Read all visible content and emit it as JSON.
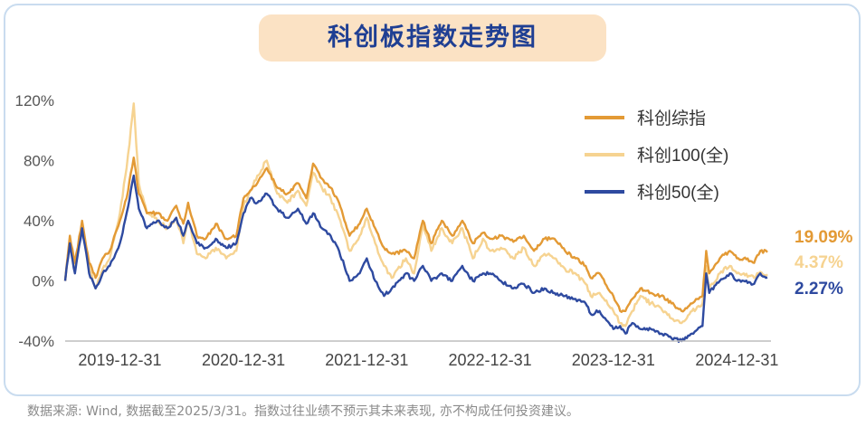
{
  "header": {
    "title": "科创板指数走势图"
  },
  "footnote": "数据来源: Wind, 数据截至2025/3/31。指数过往业绩不预示其未来表现, 亦不构成任何投资建议。",
  "colors": {
    "composite": "#e39a35",
    "kc100": "#f6d391",
    "kc50": "#2e4aa0",
    "axis": "#bdbdbd"
  },
  "chart_data": {
    "type": "line",
    "title": "科创板指数走势图",
    "xlabel": "",
    "ylabel": "",
    "ylim": [
      -40,
      120
    ],
    "yticks": [
      120,
      80,
      40,
      0,
      -40
    ],
    "ytick_labels": [
      "120%",
      "80%",
      "40%",
      "0%",
      "-40%"
    ],
    "xticks": [
      "2019-12-31",
      "2020-12-31",
      "2021-12-31",
      "2022-12-31",
      "2023-12-31",
      "2024-12-31"
    ],
    "xlim": [
      "2019-07-22",
      "2025-03-31"
    ],
    "grid": false,
    "legend_position": "top-right",
    "series": [
      {
        "name": "科创综指",
        "color": "#e39a35",
        "end_label": "19.09%",
        "x": [
          "2019-07-22",
          "2019-08-05",
          "2019-08-20",
          "2019-09-10",
          "2019-10-01",
          "2019-10-20",
          "2019-11-10",
          "2019-12-01",
          "2019-12-31",
          "2020-01-20",
          "2020-02-10",
          "2020-02-25",
          "2020-03-20",
          "2020-04-20",
          "2020-05-20",
          "2020-06-15",
          "2020-07-06",
          "2020-07-20",
          "2020-08-15",
          "2020-09-10",
          "2020-10-10",
          "2020-11-10",
          "2020-12-10",
          "2020-12-31",
          "2021-01-20",
          "2021-02-10",
          "2021-03-10",
          "2021-04-10",
          "2021-05-10",
          "2021-06-10",
          "2021-07-05",
          "2021-07-25",
          "2021-08-20",
          "2021-09-15",
          "2021-10-10",
          "2021-11-10",
          "2021-12-10",
          "2021-12-31",
          "2022-01-25",
          "2022-02-20",
          "2022-03-15",
          "2022-04-26",
          "2022-05-20",
          "2022-06-15",
          "2022-07-10",
          "2022-08-10",
          "2022-09-10",
          "2022-10-10",
          "2022-11-10",
          "2022-12-10",
          "2022-12-31",
          "2023-02-01",
          "2023-03-10",
          "2023-04-10",
          "2023-05-10",
          "2023-06-10",
          "2023-07-10",
          "2023-08-10",
          "2023-09-10",
          "2023-10-10",
          "2023-10-25",
          "2023-11-20",
          "2023-12-31",
          "2024-01-20",
          "2024-02-05",
          "2024-02-25",
          "2024-03-20",
          "2024-04-20",
          "2024-05-20",
          "2024-06-20",
          "2024-07-20",
          "2024-08-20",
          "2024-09-20",
          "2024-10-01",
          "2024-10-10",
          "2024-11-10",
          "2024-12-10",
          "2024-12-31",
          "2025-01-20",
          "2025-02-20",
          "2025-03-10",
          "2025-03-31"
        ],
        "values": [
          0,
          30,
          12,
          40,
          12,
          2,
          15,
          20,
          40,
          55,
          82,
          58,
          45,
          45,
          40,
          50,
          38,
          52,
          30,
          28,
          38,
          28,
          30,
          55,
          60,
          65,
          75,
          62,
          58,
          65,
          55,
          78,
          68,
          62,
          52,
          30,
          38,
          48,
          35,
          22,
          18,
          20,
          15,
          40,
          25,
          40,
          30,
          40,
          25,
          32,
          28,
          30,
          26,
          30,
          20,
          28,
          28,
          20,
          15,
          10,
          2,
          5,
          -10,
          -20,
          -20,
          -12,
          -5,
          -8,
          -10,
          -15,
          -20,
          -15,
          -10,
          20,
          5,
          15,
          20,
          15,
          15,
          12,
          20,
          19.09
        ]
      },
      {
        "name": "科创100(全)",
        "color": "#f6d391",
        "end_label": "4.37%",
        "x": [
          "2019-07-22",
          "2019-08-05",
          "2019-08-20",
          "2019-09-10",
          "2019-10-01",
          "2019-10-20",
          "2019-11-10",
          "2019-12-01",
          "2019-12-31",
          "2020-01-20",
          "2020-02-10",
          "2020-02-25",
          "2020-03-20",
          "2020-04-20",
          "2020-05-20",
          "2020-06-15",
          "2020-07-06",
          "2020-07-20",
          "2020-08-15",
          "2020-09-10",
          "2020-10-10",
          "2020-11-10",
          "2020-12-10",
          "2020-12-31",
          "2021-01-20",
          "2021-02-10",
          "2021-03-10",
          "2021-04-10",
          "2021-05-10",
          "2021-06-10",
          "2021-07-05",
          "2021-07-25",
          "2021-08-20",
          "2021-09-15",
          "2021-10-10",
          "2021-11-10",
          "2021-12-10",
          "2021-12-31",
          "2022-01-25",
          "2022-02-20",
          "2022-03-15",
          "2022-04-26",
          "2022-05-20",
          "2022-06-15",
          "2022-07-10",
          "2022-08-10",
          "2022-09-10",
          "2022-10-10",
          "2022-11-10",
          "2022-12-10",
          "2022-12-31",
          "2023-02-01",
          "2023-03-10",
          "2023-04-10",
          "2023-05-10",
          "2023-06-10",
          "2023-07-10",
          "2023-08-10",
          "2023-09-10",
          "2023-10-10",
          "2023-10-25",
          "2023-11-20",
          "2023-12-31",
          "2024-01-20",
          "2024-02-05",
          "2024-02-25",
          "2024-03-20",
          "2024-04-20",
          "2024-05-20",
          "2024-06-20",
          "2024-07-20",
          "2024-08-20",
          "2024-09-20",
          "2024-10-01",
          "2024-10-10",
          "2024-11-10",
          "2024-12-10",
          "2024-12-31",
          "2025-01-20",
          "2025-02-20",
          "2025-03-10",
          "2025-03-31"
        ],
        "values": [
          0,
          28,
          8,
          38,
          10,
          -5,
          8,
          15,
          45,
          75,
          118,
          65,
          45,
          40,
          35,
          42,
          25,
          40,
          18,
          15,
          22,
          15,
          20,
          50,
          60,
          70,
          80,
          58,
          52,
          60,
          50,
          72,
          62,
          55,
          42,
          20,
          30,
          42,
          25,
          10,
          2,
          15,
          5,
          38,
          20,
          35,
          25,
          35,
          15,
          28,
          20,
          22,
          15,
          22,
          10,
          18,
          15,
          8,
          5,
          -2,
          -10,
          -8,
          -20,
          -28,
          -30,
          -20,
          -10,
          -15,
          -18,
          -25,
          -28,
          -20,
          -15,
          10,
          -5,
          5,
          10,
          5,
          5,
          2,
          6,
          4.37
        ]
      },
      {
        "name": "科创50(全)",
        "color": "#2e4aa0",
        "end_label": "2.27%",
        "x": [
          "2019-07-22",
          "2019-08-05",
          "2019-08-20",
          "2019-09-10",
          "2019-10-01",
          "2019-10-20",
          "2019-11-10",
          "2019-12-01",
          "2019-12-31",
          "2020-01-20",
          "2020-02-10",
          "2020-02-25",
          "2020-03-20",
          "2020-04-20",
          "2020-05-20",
          "2020-06-15",
          "2020-07-06",
          "2020-07-20",
          "2020-08-15",
          "2020-09-10",
          "2020-10-10",
          "2020-11-10",
          "2020-12-10",
          "2020-12-31",
          "2021-01-20",
          "2021-02-10",
          "2021-03-10",
          "2021-04-10",
          "2021-05-10",
          "2021-06-10",
          "2021-07-05",
          "2021-07-25",
          "2021-08-20",
          "2021-09-15",
          "2021-10-10",
          "2021-11-10",
          "2021-12-10",
          "2021-12-31",
          "2022-01-25",
          "2022-02-20",
          "2022-03-15",
          "2022-04-26",
          "2022-05-20",
          "2022-06-15",
          "2022-07-10",
          "2022-08-10",
          "2022-09-10",
          "2022-10-10",
          "2022-11-10",
          "2022-12-10",
          "2022-12-31",
          "2023-02-01",
          "2023-03-10",
          "2023-04-10",
          "2023-05-10",
          "2023-06-10",
          "2023-07-10",
          "2023-08-10",
          "2023-09-10",
          "2023-10-10",
          "2023-10-25",
          "2023-11-20",
          "2023-12-31",
          "2024-01-20",
          "2024-02-05",
          "2024-02-25",
          "2024-03-20",
          "2024-04-20",
          "2024-05-20",
          "2024-06-20",
          "2024-07-20",
          "2024-08-20",
          "2024-09-20",
          "2024-10-01",
          "2024-10-10",
          "2024-11-10",
          "2024-12-10",
          "2024-12-31",
          "2025-01-20",
          "2025-02-20",
          "2025-03-10",
          "2025-03-31"
        ],
        "values": [
          0,
          25,
          5,
          35,
          5,
          -5,
          5,
          10,
          25,
          45,
          70,
          48,
          35,
          40,
          35,
          42,
          30,
          40,
          25,
          22,
          28,
          22,
          25,
          45,
          55,
          52,
          58,
          48,
          42,
          48,
          38,
          45,
          35,
          30,
          20,
          0,
          5,
          15,
          0,
          -10,
          -5,
          5,
          0,
          10,
          0,
          5,
          0,
          10,
          0,
          5,
          5,
          0,
          -5,
          -2,
          -8,
          -5,
          -8,
          -10,
          -12,
          -15,
          -22,
          -20,
          -32,
          -30,
          -35,
          -28,
          -32,
          -32,
          -35,
          -38,
          -40,
          -35,
          -30,
          5,
          -8,
          0,
          5,
          0,
          0,
          -2,
          5,
          2.27
        ]
      }
    ]
  }
}
